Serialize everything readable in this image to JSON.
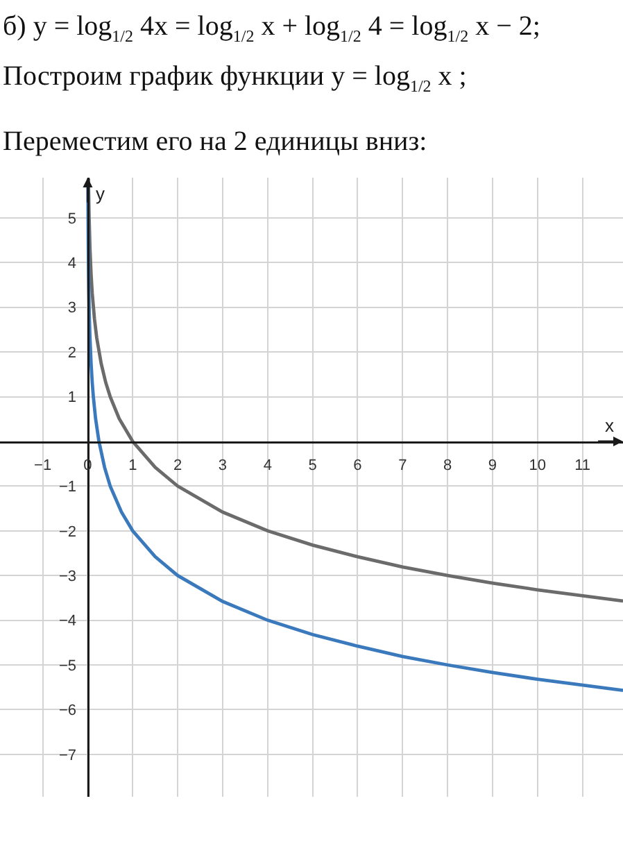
{
  "chart_data": {
    "type": "line",
    "title": "б) y = log$_{1/2}$ 4x = log$_{1/2}$ x + log$_{1/2}$ 4 = log$_{1/2}$ x − 2;",
    "subtitle": "Построим график функции y = log$_{1/2}$ x ;",
    "annotations": [
      "Переместим его на 2 единицы вниз:"
    ],
    "xlabel": "x",
    "ylabel": "y",
    "series": [
      {
        "color": "#6b6b6b",
        "x": [
          0.017,
          0.02,
          0.03,
          0.05,
          0.075,
          0.1,
          0.15,
          0.2,
          0.3,
          0.4,
          0.5,
          0.7,
          1,
          1.5,
          2,
          3,
          4,
          5,
          6,
          7,
          8,
          9,
          10,
          11.9
        ],
        "values": [
          5.88,
          5.64,
          5.06,
          4.32,
          3.74,
          3.32,
          2.74,
          2.32,
          1.74,
          1.32,
          1,
          0.51,
          0,
          -0.58,
          -1,
          -1.58,
          -2,
          -2.32,
          -2.58,
          -2.81,
          -3,
          -3.17,
          -3.32,
          -3.57
        ]
      },
      {
        "color": "#3b79bd",
        "x": [
          0.0045,
          0.005,
          0.0075,
          0.0125,
          0.019,
          0.025,
          0.0375,
          0.05,
          0.075,
          0.1,
          0.125,
          0.175,
          0.25,
          0.375,
          0.5,
          0.75,
          1,
          1.5,
          2,
          3,
          4,
          5,
          6,
          7,
          8,
          9,
          10,
          11.9
        ],
        "values": [
          5.8,
          5.64,
          5.06,
          4.32,
          3.72,
          3.32,
          2.74,
          2.32,
          1.74,
          1.32,
          1,
          0.51,
          0,
          -0.58,
          -1,
          -1.58,
          -2,
          -2.58,
          -3,
          -3.58,
          -4,
          -4.32,
          -4.58,
          -4.81,
          -5,
          -5.17,
          -5.32,
          -5.57
        ]
      }
    ],
    "xlim": [
      -1.95,
      11.9
    ],
    "ylim": [
      -7.95,
      5.9
    ],
    "xticks": [
      -1,
      0,
      1,
      2,
      3,
      4,
      5,
      6,
      7,
      8,
      9,
      10,
      11
    ],
    "yticks": [
      -7,
      -6,
      -5,
      -4,
      -3,
      -2,
      -1,
      1,
      2,
      3,
      4,
      5
    ],
    "grid": true,
    "line_style": "solid"
  }
}
